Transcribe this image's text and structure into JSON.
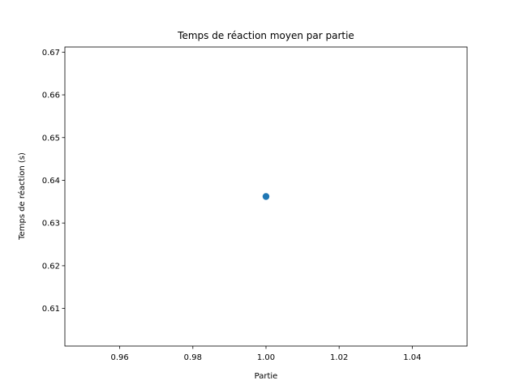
{
  "chart_data": {
    "type": "scatter",
    "title": "Temps de réaction moyen par partie",
    "xlabel": "Partie",
    "ylabel": "Temps de réaction (s)",
    "xlim": [
      0.945,
      1.055
    ],
    "ylim": [
      0.6012,
      0.6712
    ],
    "x_ticks": [
      0.96,
      0.98,
      1.0,
      1.02,
      1.04
    ],
    "x_tick_labels": [
      "0.96",
      "0.98",
      "1.00",
      "1.02",
      "1.04"
    ],
    "y_ticks": [
      0.61,
      0.62,
      0.63,
      0.64,
      0.65,
      0.66,
      0.67
    ],
    "y_tick_labels": [
      "0.61",
      "0.62",
      "0.63",
      "0.64",
      "0.65",
      "0.66",
      "0.67"
    ],
    "grid": false,
    "series": [
      {
        "color": "#1f77b4",
        "points": [
          {
            "x": 1.0,
            "y": 0.6362
          }
        ]
      }
    ]
  }
}
